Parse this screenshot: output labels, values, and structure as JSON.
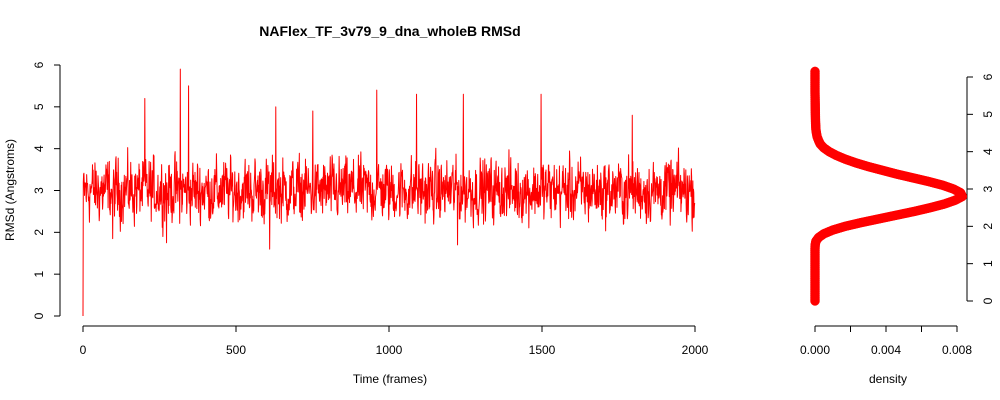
{
  "chart_data": [
    {
      "type": "line",
      "title": "NAFlex_TF_3v79_9_dna_wholeB RMSd",
      "xlabel": "Time (frames)",
      "ylabel": "RMSd (Angstroms)",
      "xlim": [
        0,
        2000
      ],
      "ylim": [
        0,
        6
      ],
      "xticks": [
        "0",
        "500",
        "1000",
        "1500",
        "2000"
      ],
      "yticks": [
        "0",
        "1",
        "2",
        "3",
        "4",
        "5",
        "6"
      ],
      "color": "#ff0000",
      "grid": false,
      "series_summary": {
        "n_frames": 2000,
        "start_value": 0.0,
        "typical_range": [
          1.6,
          4.6
        ],
        "mean": 3.0,
        "max": 5.9,
        "max_frame": 318,
        "notable_peaks": [
          {
            "x": 318,
            "y": 5.9
          },
          {
            "x": 345,
            "y": 5.5
          },
          {
            "x": 960,
            "y": 5.4
          },
          {
            "x": 1090,
            "y": 5.3
          },
          {
            "x": 1243,
            "y": 5.3
          },
          {
            "x": 1497,
            "y": 5.3
          },
          {
            "x": 1795,
            "y": 4.8
          },
          {
            "x": 202,
            "y": 5.2
          },
          {
            "x": 630,
            "y": 5.0
          },
          {
            "x": 751,
            "y": 4.9
          }
        ],
        "notable_troughs": [
          {
            "x": 610,
            "y": 1.6
          },
          {
            "x": 1224,
            "y": 1.7
          },
          {
            "x": 273,
            "y": 1.75
          },
          {
            "x": 97,
            "y": 1.85
          }
        ]
      }
    },
    {
      "type": "line",
      "xlabel": "density",
      "ylabel": "",
      "xlim": [
        0,
        0.008
      ],
      "ylim": [
        0,
        6
      ],
      "xticks": [
        "0.000",
        "0.004",
        "0.008"
      ],
      "yticks": [
        "0",
        "1",
        "2",
        "3",
        "4",
        "5",
        "6"
      ],
      "color": "#ff0000",
      "marker": "circle",
      "orientation": "vertical",
      "points": [
        [
          0.0,
          0.0
        ],
        [
          0.0,
          0.3
        ],
        [
          0.0,
          0.6
        ],
        [
          0.0,
          0.9
        ],
        [
          0.0,
          1.2
        ],
        [
          0.0,
          1.4
        ],
        [
          1e-05,
          1.5
        ],
        [
          5e-05,
          1.6
        ],
        [
          0.0002,
          1.7
        ],
        [
          0.0005,
          1.8
        ],
        [
          0.001,
          1.9
        ],
        [
          0.0017,
          2.0
        ],
        [
          0.0026,
          2.1
        ],
        [
          0.0036,
          2.2
        ],
        [
          0.0046,
          2.3
        ],
        [
          0.0056,
          2.4
        ],
        [
          0.0065,
          2.5
        ],
        [
          0.0073,
          2.6
        ],
        [
          0.0079,
          2.7
        ],
        [
          0.0083,
          2.8
        ],
        [
          0.0082,
          2.9
        ],
        [
          0.0078,
          3.0
        ],
        [
          0.0072,
          3.1
        ],
        [
          0.0064,
          3.2
        ],
        [
          0.0055,
          3.3
        ],
        [
          0.0046,
          3.4
        ],
        [
          0.0038,
          3.5
        ],
        [
          0.003,
          3.6
        ],
        [
          0.0023,
          3.7
        ],
        [
          0.0017,
          3.8
        ],
        [
          0.0012,
          3.9
        ],
        [
          0.0008,
          4.0
        ],
        [
          0.0005,
          4.1
        ],
        [
          0.0003,
          4.2
        ],
        [
          0.0002,
          4.3
        ],
        [
          0.00012,
          4.4
        ],
        [
          8e-05,
          4.5
        ],
        [
          5e-05,
          4.6
        ],
        [
          3e-05,
          4.8
        ],
        [
          2e-05,
          5.0
        ],
        [
          1e-05,
          5.3
        ],
        [
          0.0,
          5.6
        ],
        [
          0.0,
          6.0
        ],
        [
          0.0,
          6.2
        ]
      ]
    }
  ]
}
